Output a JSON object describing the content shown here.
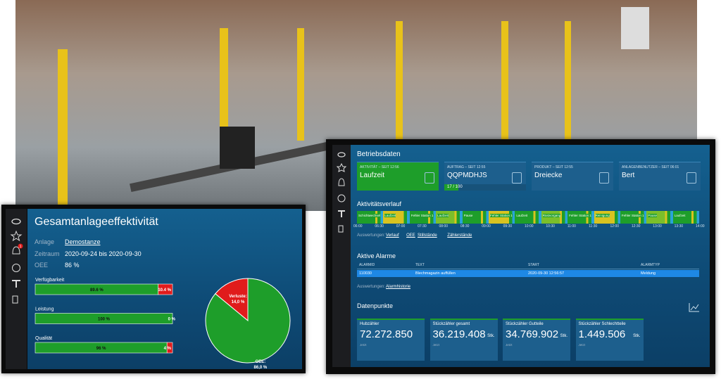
{
  "chart_data": [
    {
      "type": "stacked-bar",
      "categories": [
        "Verfügbarkeit",
        "Leistung",
        "Qualität"
      ],
      "series": [
        {
          "color": "#1e9e2a",
          "values": [
            89.6,
            100,
            96
          ],
          "value_labels": [
            "89.6 %",
            "100 %",
            "96 %"
          ]
        },
        {
          "color": "#e01b1b",
          "values": [
            10.4,
            0,
            4
          ],
          "value_labels": [
            "10.4 %",
            "0 %",
            "4 %"
          ]
        }
      ],
      "xlim": [
        0,
        100
      ]
    },
    {
      "type": "pie",
      "categories": [
        "Verluste:",
        "OEE:"
      ],
      "values": [
        14,
        86
      ],
      "value_labels": [
        "14,0 %",
        "86,0 %"
      ],
      "colors": [
        "#e01b1b",
        "#1e9e2a"
      ]
    }
  ],
  "left_panel": {
    "title": "Gesamtanlageeffektivität",
    "fields": [
      {
        "label": "Anlage",
        "value": "Demostanze"
      },
      {
        "label": "Zeitraum",
        "value": "2020-09-24 bis 2020-09-30"
      },
      {
        "label": "OEE",
        "value": "86 %"
      }
    ],
    "notification_count": "1"
  },
  "right_panel": {
    "title": "Betriebsdaten",
    "cards": [
      {
        "caption": "AKTIVITÄT – SEIT 12:56",
        "value": "Laufzeit"
      },
      {
        "caption": "AUFTRAG – SEIT 12:55",
        "value": "QQPMDHJS",
        "progress": {
          "value": 17,
          "max": 100,
          "label": "17 / 100"
        }
      },
      {
        "caption": "PRODUKT – SEIT 12:55",
        "value": "Dreiecke"
      },
      {
        "caption": "ANLAGENBENUTZER – SEIT 06:01",
        "value": "Bert"
      }
    ],
    "activity": {
      "title": "Aktivitätsverlauf",
      "segments": [
        "Schichtwechsel",
        "Laufzeit",
        "Fehler Station 1",
        "Laufzeit",
        "Pause",
        "Fehler Station 1",
        "Laufzeit",
        "Rüstvorgang",
        "Fehler Station 1",
        "Reinigung",
        "Fehler Station 1",
        "Pause",
        "Laufzeit"
      ],
      "times": [
        "06:00",
        "06:30",
        "07:00",
        "07:30",
        "08:00",
        "08:30",
        "09:00",
        "09:30",
        "10:00",
        "10:30",
        "11:00",
        "11:30",
        "12:00",
        "12:30",
        "13:00",
        "13:30",
        "14:00"
      ]
    },
    "links": {
      "label": "Auswertungen:",
      "items": [
        "Verlauf",
        "OEE",
        "Stillstände",
        "Zählerstände"
      ]
    },
    "alarms": {
      "title": "Aktive Alarme",
      "columns": [
        "ALARMID",
        "TEXT",
        "START",
        "ALARMTYP"
      ],
      "rows": [
        [
          "110030",
          "Blechmagazin auffüllen",
          "2020-09-30 12:56:57",
          "Meldung"
        ]
      ],
      "links_label": "Auswertungen:",
      "link": "Alarmhistorie"
    },
    "datapoints": {
      "title": "Datenpunkte",
      "items": [
        {
          "name": "Hubzähler",
          "value": "72.272.850",
          "note": "Jetzt"
        },
        {
          "name": "Stückzähler gesamt",
          "value": "36.219.408",
          "unit": "Stk.",
          "note": "Jetzt"
        },
        {
          "name": "Stückzähler Gutteile",
          "value": "34.769.902",
          "unit": "Stk.",
          "note": "Jetzt"
        },
        {
          "name": "Stückzähler Schlechtteile",
          "value": "1.449.506",
          "unit": "Stk.",
          "note": "Jetzt"
        }
      ]
    }
  }
}
